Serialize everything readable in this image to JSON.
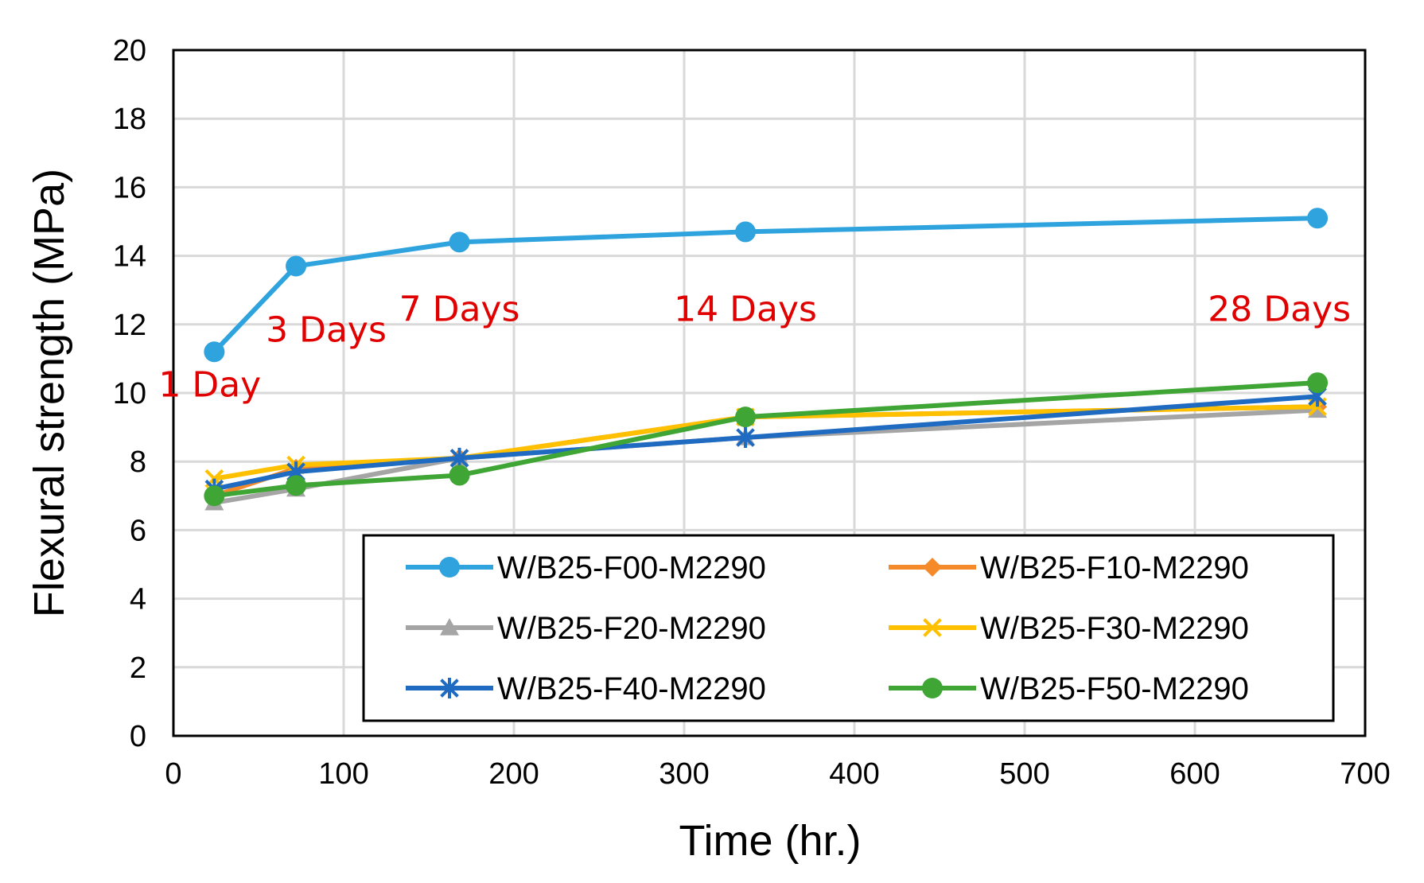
{
  "chart_data": {
    "type": "line",
    "title": "",
    "xlabel": "Time (hr.)",
    "ylabel": "Flexural strength (MPa)",
    "xlim": [
      0,
      700
    ],
    "ylim": [
      0,
      20
    ],
    "xticks": [
      "0",
      "100",
      "200",
      "300",
      "400",
      "500",
      "600",
      "700"
    ],
    "yticks": [
      "0",
      "2",
      "4",
      "6",
      "8",
      "10",
      "12",
      "14",
      "16",
      "18",
      "20"
    ],
    "grid": true,
    "legend_position": "bottom-right",
    "x": [
      24,
      72,
      168,
      336,
      672
    ],
    "series": [
      {
        "name": "W/B25-F00-M2290",
        "color": "#2ea3dd",
        "marker": "circle",
        "values": [
          11.2,
          13.7,
          14.4,
          14.7,
          15.1
        ]
      },
      {
        "name": "W/B25-F10-M2290",
        "color": "#f58a2a",
        "marker": "diamond",
        "values": [
          7.0,
          7.8,
          8.1,
          9.3,
          9.6
        ]
      },
      {
        "name": "W/B25-F20-M2290",
        "color": "#a5a5a5",
        "marker": "triangle",
        "values": [
          6.8,
          7.2,
          8.1,
          8.7,
          9.5
        ]
      },
      {
        "name": "W/B25-F30-M2290",
        "color": "#ffc000",
        "marker": "x",
        "values": [
          7.5,
          7.9,
          8.1,
          9.3,
          9.6
        ]
      },
      {
        "name": "W/B25-F40-M2290",
        "color": "#1f6bc1",
        "marker": "star",
        "values": [
          7.2,
          7.7,
          8.1,
          8.7,
          9.9
        ]
      },
      {
        "name": "W/B25-F50-M2290",
        "color": "#3fa535",
        "marker": "circle",
        "values": [
          7.0,
          7.3,
          7.6,
          9.3,
          10.3
        ]
      }
    ],
    "annotations": [
      {
        "text": "1 Day",
        "x": 24,
        "y": 9.9
      },
      {
        "text": "3 Days",
        "x": 72,
        "y": 11.5
      },
      {
        "text": "7 Days",
        "x": 168,
        "y": 12.1
      },
      {
        "text": "14 Days",
        "x": 336,
        "y": 12.1
      },
      {
        "text": "28 Days",
        "x": 672,
        "y": 12.1
      }
    ],
    "annotation_color": "#e00000"
  }
}
